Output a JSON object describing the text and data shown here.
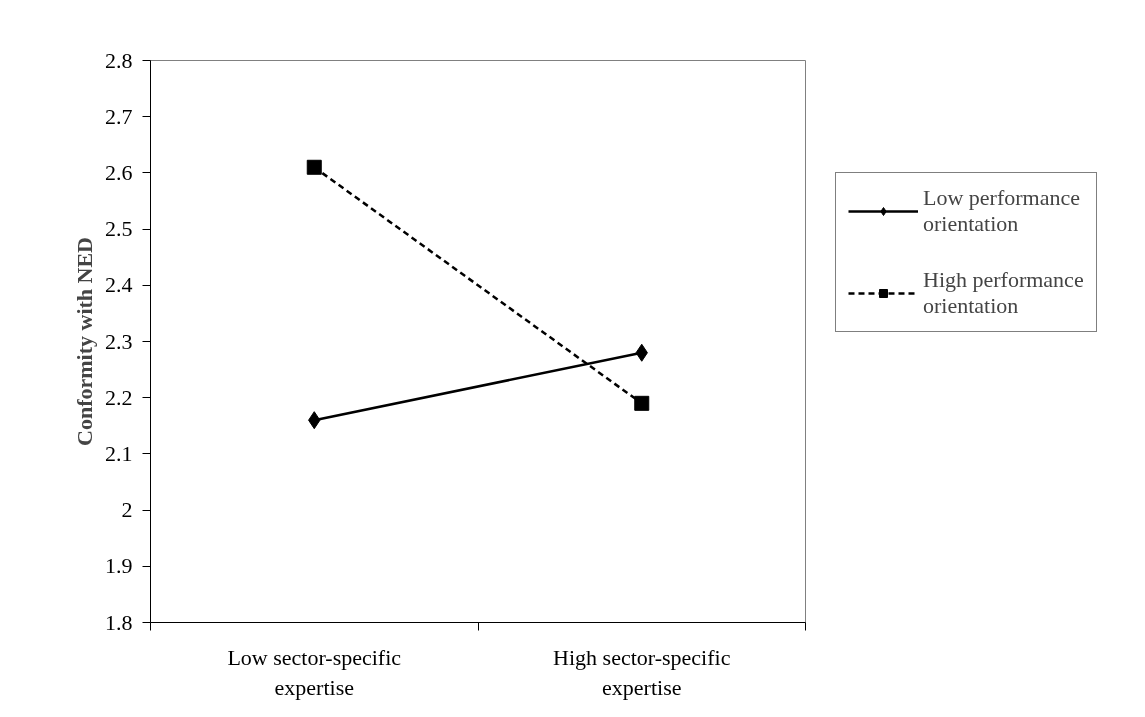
{
  "chart_data": {
    "type": "line",
    "ylabel": "Conformity with NED",
    "categories": [
      "Low sector-specific expertise",
      "High sector-specific expertise"
    ],
    "series": [
      {
        "name": "Low performance orientation",
        "color": "#000000",
        "marker": "diamond",
        "line_style": "solid",
        "values": [
          2.16,
          2.28
        ]
      },
      {
        "name": "High performance orientation",
        "color": "#000000",
        "marker": "square",
        "line_style": "dashed",
        "values": [
          2.61,
          2.19
        ]
      }
    ],
    "ylim": [
      1.8,
      2.8
    ],
    "yticks": [
      1.8,
      1.9,
      2,
      2.1,
      2.2,
      2.3,
      2.4,
      2.5,
      2.6,
      2.7,
      2.8
    ],
    "grid": false,
    "legend": "right"
  }
}
